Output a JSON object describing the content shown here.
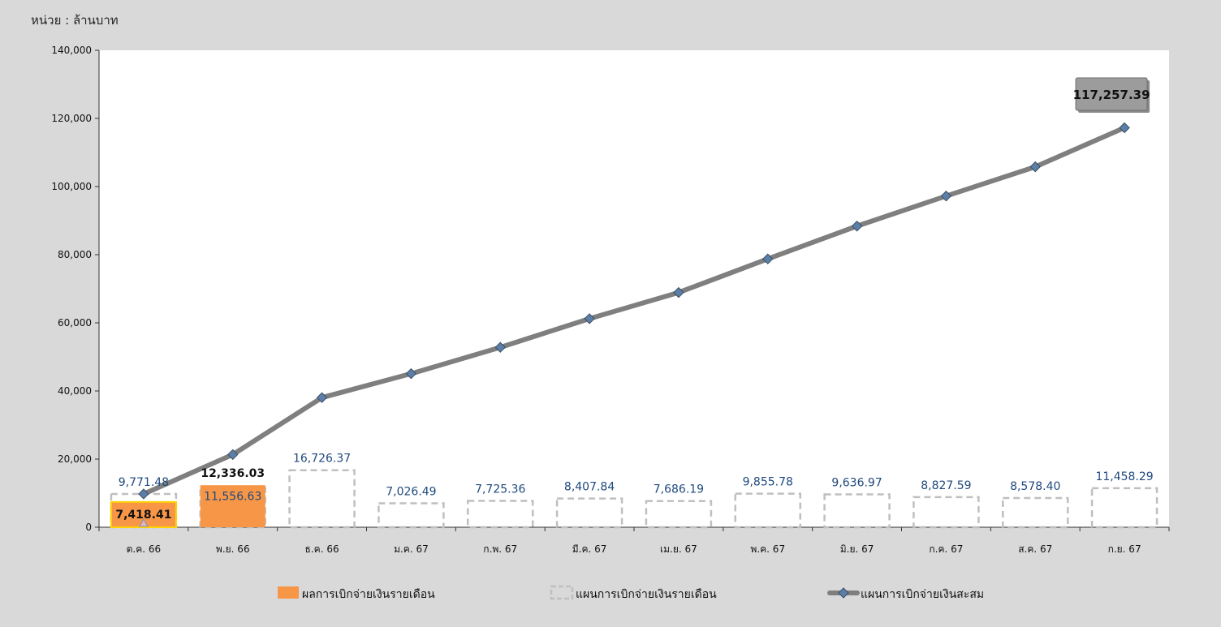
{
  "unit_label": "หน่วย : ล้านบาท",
  "chart_data": {
    "type": "bar+line",
    "categories": [
      "ต.ค. 66",
      "พ.ย. 66",
      "ธ.ค. 66",
      "ม.ค. 67",
      "ก.พ. 67",
      "มี.ค. 67",
      "เม.ย. 67",
      "พ.ค. 67",
      "มิ.ย. 67",
      "ก.ค. 67",
      "ส.ค. 67",
      "ก.ย. 67"
    ],
    "ylim": [
      0,
      140000
    ],
    "yticks": [
      0,
      20000,
      40000,
      60000,
      80000,
      100000,
      120000,
      140000
    ],
    "ytick_labels": [
      "0",
      "20,000",
      "40,000",
      "60,000",
      "80,000",
      "100,000",
      "120,000",
      "140,000"
    ],
    "series": [
      {
        "name": "ผลการเบิกจ่ายเงินรายเดือน",
        "kind": "bar-solid",
        "color": "#f79646",
        "values": [
          7418.41,
          12336.03,
          null,
          null,
          null,
          null,
          null,
          null,
          null,
          null,
          null,
          null
        ],
        "labels": [
          "7,418.41",
          "12,336.03",
          "",
          "",
          "",
          "",
          "",
          "",
          "",
          "",
          "",
          ""
        ]
      },
      {
        "name": "แผนการเบิกจ่ายเงินรายเดือน",
        "kind": "bar-dashed",
        "color": "#bfbfbf",
        "values": [
          9771.48,
          11556.63,
          16726.37,
          7026.49,
          7725.36,
          8407.84,
          7686.19,
          9855.78,
          9636.97,
          8827.59,
          8578.4,
          11458.29
        ],
        "labels": [
          "9,771.48",
          "11,556.63",
          "16,726.37",
          "7,026.49",
          "7,725.36",
          "8,407.84",
          "7,686.19",
          "9,855.78",
          "9,636.97",
          "8,827.59",
          "8,578.40",
          "11,458.29"
        ]
      },
      {
        "name": "แผนการเบิกจ่ายเงินสะสม",
        "kind": "line",
        "color": "#7f7f7f",
        "marker_color": "#5b7fa6",
        "values": [
          9771.48,
          21328.11,
          38054.48,
          45080.97,
          52806.33,
          61214.17,
          68900.36,
          78756.14,
          88393.11,
          97220.7,
          105799.1,
          117257.39
        ],
        "end_label": "117,257.39"
      }
    ],
    "legend_position": "bottom"
  }
}
